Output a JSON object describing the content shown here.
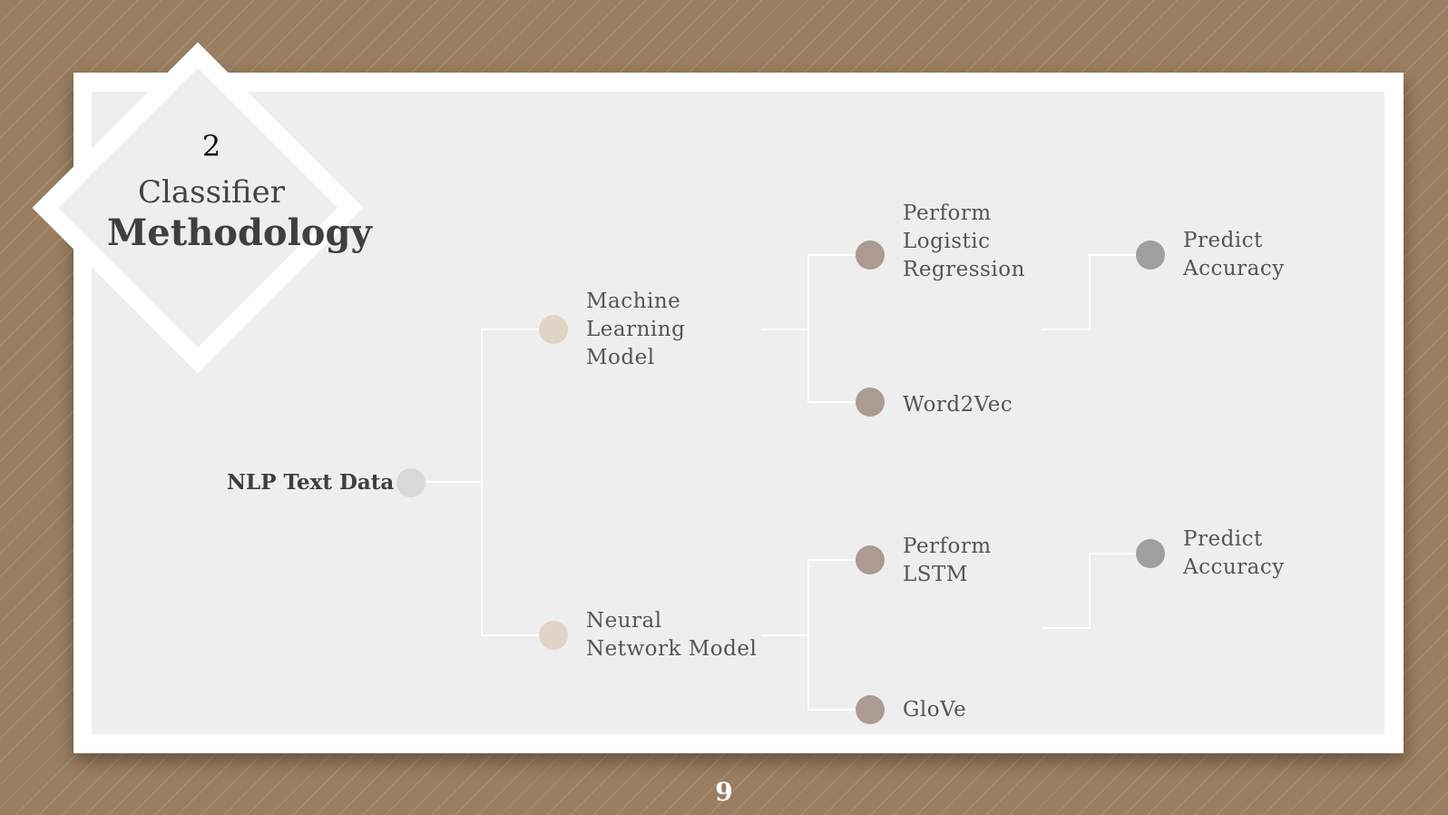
{
  "header": {
    "number": "2",
    "title_line1": "Classifier",
    "title_line2": "Methodology"
  },
  "tree": {
    "root": "NLP  Text Data",
    "branches": [
      {
        "label": "Machine\nLearning\nModel",
        "children": [
          {
            "label": "Perform\nLogistic\nRegression",
            "next": "Predict\nAccuracy"
          },
          {
            "label": "Word2Vec"
          }
        ]
      },
      {
        "label": "Neural\nNetwork Model",
        "children": [
          {
            "label": "Perform\n LSTM",
            "next": "Predict\nAccuracy"
          },
          {
            "label": "GloVe"
          }
        ]
      }
    ]
  },
  "footer": {
    "page_number": "9"
  },
  "colors": {
    "background": "#9a7e61",
    "panel": "#eeeeee",
    "connector": "#ffffff",
    "root_node": "#d9d9d9",
    "level1_node": "#e1d3c6",
    "level2_node": "#ab9b92",
    "level3_node": "#9f9f9f"
  }
}
